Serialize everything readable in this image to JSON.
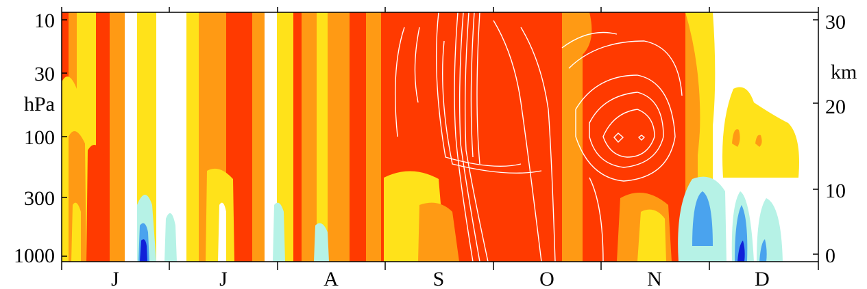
{
  "chart_data": {
    "type": "heatmap",
    "title": "",
    "left_axis": {
      "label": "hPa",
      "ticks": [
        "10",
        "30",
        "100",
        "300",
        "1000"
      ],
      "scale": "log",
      "inverted": true
    },
    "right_axis": {
      "label": "km",
      "ticks": [
        "30",
        "20",
        "10",
        "0"
      ]
    },
    "x_axis": {
      "months": [
        "J",
        "J",
        "A",
        "S",
        "O",
        "N",
        "D"
      ]
    },
    "colors": {
      "dark_red": "#ff3a00",
      "orange": "#ff9a14",
      "yellow": "#ffe21a",
      "white": "#ffffff",
      "light_cyan": "#b6f2e6",
      "blue": "#4aa3ee",
      "dark_blue": "#1020d8",
      "contour": "#ffffff",
      "axis": "#000000"
    },
    "contours": "white contour lines over the September–November maximum, peaking near 100 hPa in November",
    "legend": "none",
    "grid": false
  }
}
